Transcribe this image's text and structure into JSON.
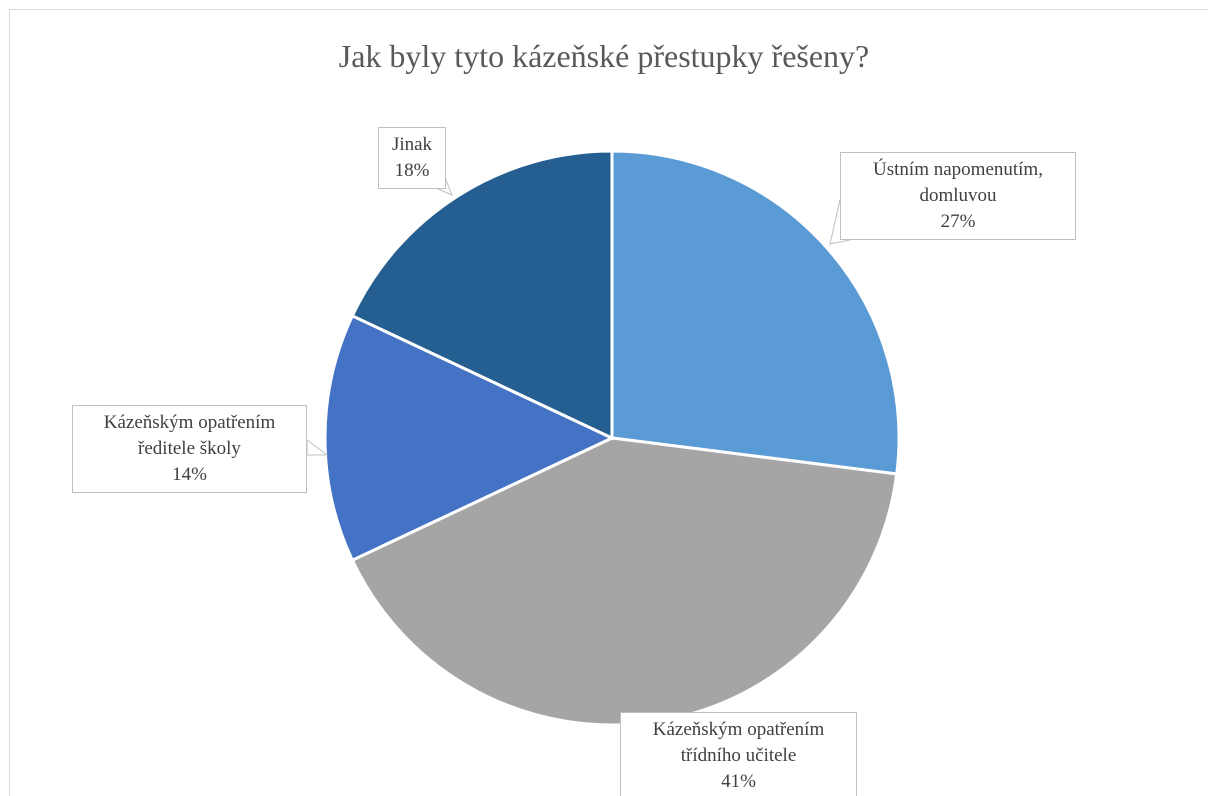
{
  "chart_data": {
    "type": "pie",
    "title": "Jak byly tyto kázeňské přestupky řešeny?",
    "categories": [
      "Ústním napomenutím, domluvou",
      "Kázeňským opatřením třídního učitele",
      "Kázeňským opatřením ředitele školy",
      "Jinak"
    ],
    "values": [
      27,
      41,
      14,
      18
    ],
    "value_labels": [
      "27%",
      "41%",
      "14%",
      "18%"
    ],
    "colors": [
      "#5b9bd5",
      "#a5a5a5",
      "#4472c4",
      "#255e91"
    ]
  }
}
